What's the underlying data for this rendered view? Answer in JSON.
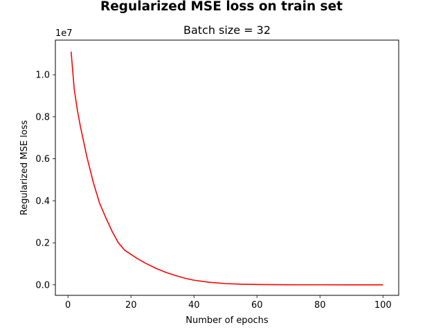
{
  "chart_data": {
    "type": "line",
    "suptitle": "Regularized MSE loss on train set",
    "title": "Batch size = 32",
    "xlabel": "Number of epochs",
    "ylabel": "Regularized MSE loss",
    "y_offset_label": "1e7",
    "xlim": [
      -4,
      105
    ],
    "ylim": [
      -0.05,
      1.165
    ],
    "y_scale_factor": 10000000,
    "xticks": [
      0,
      20,
      40,
      60,
      80,
      100
    ],
    "xtick_labels": [
      "0",
      "20",
      "40",
      "60",
      "80",
      "100"
    ],
    "yticks": [
      0.0,
      0.2,
      0.4,
      0.6,
      0.8,
      1.0
    ],
    "ytick_labels": [
      "0.0",
      "0.2",
      "0.4",
      "0.6",
      "0.8",
      "1.0"
    ],
    "grid": false,
    "series": [
      {
        "color": "#ff0000",
        "x": [
          1,
          2,
          3,
          4,
          5,
          6,
          7,
          8,
          9,
          10,
          12,
          14,
          16,
          18,
          20,
          22,
          25,
          28,
          31,
          34,
          37,
          40,
          45,
          50,
          55,
          60,
          70,
          80,
          90,
          100
        ],
        "y": [
          1.11,
          0.93,
          0.83,
          0.75,
          0.68,
          0.61,
          0.55,
          0.49,
          0.44,
          0.39,
          0.32,
          0.255,
          0.2,
          0.165,
          0.145,
          0.125,
          0.1,
          0.078,
          0.06,
          0.045,
          0.032,
          0.022,
          0.012,
          0.006,
          0.003,
          0.0015,
          0.0005,
          0.0002,
          0.0001,
          0.0
        ]
      }
    ]
  }
}
